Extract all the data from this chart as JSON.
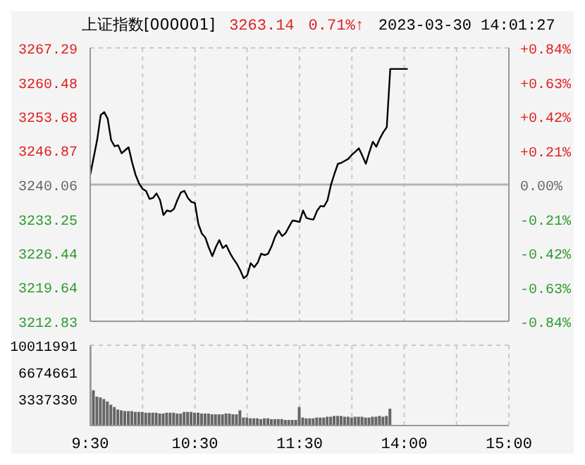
{
  "chart_data": [
    {
      "type": "line",
      "title": "上证指数[000001]",
      "annotations": [
        "3263.14",
        "0.71%↑",
        "2023-03-30 14:01:27"
      ],
      "categories": [
        null,
        null,
        null,
        null,
        null,
        null,
        null,
        null,
        null,
        null,
        null,
        null,
        null,
        null,
        null,
        null,
        null,
        null,
        null,
        null,
        null,
        null,
        null,
        null,
        null,
        null,
        null,
        null,
        null,
        null,
        null,
        null,
        null,
        null,
        null,
        null,
        null,
        null,
        null,
        null,
        null,
        null,
        null,
        null,
        null,
        null,
        null,
        null,
        null,
        null,
        null,
        null,
        null,
        null,
        null,
        null,
        null,
        null,
        null,
        null,
        null,
        null,
        null,
        null,
        null,
        null,
        null,
        null,
        null,
        null,
        null,
        null,
        null,
        null,
        null,
        null,
        null,
        null,
        null,
        null,
        null,
        null,
        null,
        null,
        null,
        null,
        null,
        null,
        null,
        null,
        null,
        null,
        null,
        null,
        null,
        null,
        null,
        null,
        null,
        null,
        null,
        null,
        null,
        null,
        null,
        null,
        null,
        null,
        null,
        null,
        null,
        null,
        null,
        null,
        null,
        null,
        null,
        null,
        null,
        null,
        null
      ],
      "values": [
        3242.0,
        3245.5,
        3249.0,
        3253.9,
        3254.5,
        3253.2,
        3248.9,
        3247.7,
        3247.9,
        3246.3,
        3246.9,
        3247.5,
        3244.5,
        3242.0,
        3240.3,
        3239.2,
        3238.8,
        3237.2,
        3237.4,
        3238.3,
        3237.0,
        3234.0,
        3234.9,
        3234.7,
        3235.2,
        3237.0,
        3238.5,
        3238.8,
        3237.4,
        3236.6,
        3236.4,
        3232.2,
        3230.3,
        3229.5,
        3227.5,
        3225.8,
        3227.6,
        3229.0,
        3227.4,
        3228.0,
        3226.5,
        3225.3,
        3224.3,
        3223.0,
        3221.4,
        3222.0,
        3224.4,
        3223.6,
        3224.5,
        3226.3,
        3226.0,
        3226.3,
        3227.8,
        3229.7,
        3230.9,
        3229.8,
        3230.4,
        3231.7,
        3232.9,
        3232.8,
        3232.6,
        3234.9,
        3233.4,
        3233.2,
        3233.1,
        3234.8,
        3235.8,
        3235.7,
        3236.9,
        3240.0,
        3242.2,
        3244.2,
        3244.4,
        3244.8,
        3245.2,
        3246.0,
        3246.6,
        3247.3,
        3245.8,
        3244.2,
        3246.5,
        3248.6,
        3247.6,
        3249.2,
        3250.5,
        3251.5,
        3263.1,
        3263.1,
        3263.1,
        3263.1,
        3263.1,
        3263.1,
        null,
        null,
        null,
        null,
        null,
        null,
        null,
        null,
        null,
        null,
        null,
        null,
        null,
        null,
        null,
        null,
        null,
        null,
        null,
        null,
        null,
        null,
        null,
        null,
        null,
        null,
        null,
        null,
        null
      ],
      "color": "#000000",
      "marker": "none",
      "ylim": [
        3212.83,
        3267.29
      ],
      "yticks": [
        3212.83,
        3219.64,
        3226.44,
        3233.25,
        3240.06,
        3246.87,
        3253.68,
        3260.48,
        3267.29
      ],
      "y2lim": [
        -0.84,
        0.84
      ],
      "y2ticks": [
        {
          "value": -0.84,
          "label": "-0.84%"
        },
        {
          "value": -0.63,
          "label": "-0.63%"
        },
        {
          "value": -0.42,
          "label": "-0.42%"
        },
        {
          "value": -0.21,
          "label": "-0.21%"
        },
        {
          "value": 0,
          "label": "0.00%"
        },
        {
          "value": 0.21,
          "label": "+0.21%"
        },
        {
          "value": 0.42,
          "label": "+0.42%"
        },
        {
          "value": 0.63,
          "label": "+0.63%"
        },
        {
          "value": 0.84,
          "label": "+0.84%"
        }
      ],
      "ref_lines": [
        {
          "axis": "y",
          "value": 3240.06,
          "color": "#b4b4b4"
        }
      ],
      "grid": true,
      "tick_labels": "y"
    },
    {
      "type": "bar",
      "color": "#666666",
      "categories": [
        "9:30",
        null,
        null,
        null,
        null,
        null,
        null,
        null,
        null,
        null,
        null,
        null,
        null,
        null,
        null,
        null,
        null,
        null,
        null,
        null,
        null,
        null,
        null,
        null,
        null,
        null,
        null,
        null,
        null,
        null,
        "10:30",
        null,
        null,
        null,
        null,
        null,
        null,
        null,
        null,
        null,
        null,
        null,
        null,
        null,
        null,
        null,
        null,
        null,
        null,
        null,
        null,
        null,
        null,
        null,
        null,
        null,
        null,
        null,
        null,
        null,
        "11:30",
        null,
        null,
        null,
        null,
        null,
        null,
        null,
        null,
        null,
        null,
        null,
        null,
        null,
        null,
        null,
        null,
        null,
        null,
        null,
        null,
        null,
        null,
        null,
        null,
        null,
        null,
        null,
        null,
        null,
        "14:00",
        null,
        null,
        null,
        null,
        null,
        null,
        null,
        null,
        null,
        null,
        null,
        null,
        null,
        null,
        null,
        null,
        null,
        null,
        null,
        null,
        null,
        null,
        null,
        null,
        null,
        null,
        null,
        null,
        null,
        "15:00"
      ],
      "values": [
        9900000,
        4400000,
        3600000,
        3500000,
        3300000,
        3000000,
        2600000,
        2300000,
        2000000,
        1900000,
        1800000,
        1800000,
        1800000,
        1700000,
        1700000,
        1700000,
        1600000,
        1600000,
        1600000,
        1600000,
        1500000,
        1500000,
        1600000,
        1600000,
        1600000,
        1500000,
        1500000,
        1700000,
        1700000,
        1700000,
        1600000,
        1600000,
        1500000,
        1500000,
        1500000,
        1400000,
        1400000,
        1400000,
        1400000,
        1500000,
        1500000,
        1400000,
        1400000,
        1900000,
        1000000,
        1000000,
        900000,
        900000,
        900000,
        800000,
        900000,
        900000,
        800000,
        800000,
        800000,
        800000,
        700000,
        700000,
        700000,
        700000,
        2300000,
        1000000,
        900000,
        900000,
        900000,
        1000000,
        1000000,
        1000000,
        1100000,
        1100000,
        1200000,
        1200000,
        1200000,
        1100000,
        1100000,
        1000000,
        1100000,
        1100000,
        1100000,
        1000000,
        1000000,
        1100000,
        1100000,
        1200000,
        1100000,
        1200000,
        2100000,
        null,
        null,
        null,
        null,
        null,
        null,
        null,
        null,
        null,
        null,
        null,
        null,
        null,
        null,
        null,
        null,
        null,
        null,
        null,
        null,
        null,
        null,
        null,
        null,
        null,
        null,
        null,
        null,
        null,
        null,
        null,
        null,
        null,
        null
      ],
      "ylim": [
        0,
        10011991
      ],
      "yticks": [
        3337330,
        6674661,
        10011991
      ],
      "grid": true
    }
  ]
}
